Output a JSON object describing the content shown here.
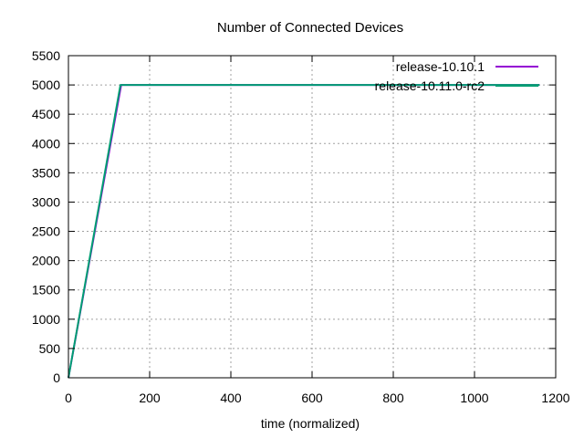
{
  "chart_data": {
    "type": "line",
    "title": "Number of Connected Devices",
    "xlabel": "time (normalized)",
    "ylabel": "",
    "xlim": [
      0,
      1200
    ],
    "ylim": [
      0,
      5500
    ],
    "xticks": [
      0,
      200,
      400,
      600,
      800,
      1000,
      1200
    ],
    "yticks": [
      0,
      500,
      1000,
      1500,
      2000,
      2500,
      3000,
      3500,
      4000,
      4500,
      5000,
      5500
    ],
    "grid": true,
    "legend_position": "top-right",
    "series": [
      {
        "name": "release-10.10.1",
        "color": "#9400d3",
        "points": [
          [
            0,
            0
          ],
          [
            130,
            5000
          ],
          [
            1160,
            5000
          ]
        ]
      },
      {
        "name": "release-10.11.0-rc2",
        "color": "#009e73",
        "points": [
          [
            0,
            0
          ],
          [
            128,
            5000
          ],
          [
            1160,
            5000
          ]
        ]
      }
    ]
  }
}
